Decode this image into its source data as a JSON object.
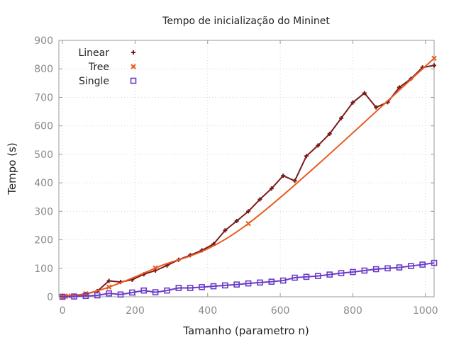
{
  "chart_data": {
    "type": "line",
    "title": "Tempo de inicialização do Mininet",
    "xlabel": "Tamanho (parametro n)",
    "ylabel": "Tempo (s)",
    "xlim": [
      -10,
      1024
    ],
    "ylim": [
      0,
      900
    ],
    "x_ticks": [
      0,
      200,
      400,
      600,
      800,
      1000
    ],
    "y_ticks": [
      0,
      100,
      200,
      300,
      400,
      500,
      600,
      700,
      800,
      900
    ],
    "x_tick_labels": [
      "0",
      "200",
      "400",
      "600",
      "800",
      "1000"
    ],
    "y_tick_labels": [
      "0",
      "100",
      "200",
      "300",
      "400",
      "500",
      "600",
      "700",
      "800",
      "900"
    ],
    "grid": true,
    "legend_position": "top-left",
    "series": [
      {
        "name": "Linear",
        "color": "#7a1a1a",
        "marker": "plus",
        "x": [
          0,
          32,
          64,
          96,
          128,
          160,
          192,
          224,
          256,
          288,
          320,
          352,
          384,
          416,
          448,
          480,
          512,
          544,
          576,
          608,
          640,
          672,
          704,
          736,
          768,
          800,
          832,
          864,
          896,
          928,
          960,
          992,
          1024
        ],
        "values": [
          1,
          4,
          10,
          20,
          56,
          52,
          60,
          79,
          92,
          110,
          130,
          146,
          163,
          185,
          233,
          266,
          300,
          342,
          380,
          425,
          407,
          494,
          531,
          572,
          627,
          682,
          715,
          665,
          683,
          735,
          765,
          805,
          812
        ]
      },
      {
        "name": "Tree",
        "color": "#e85a1e",
        "marker": "cross",
        "x": [
          2,
          8,
          16,
          64,
          128,
          256,
          512,
          1024
        ],
        "values": [
          0,
          1,
          3,
          11,
          34,
          101,
          257,
          837
        ]
      },
      {
        "name": "Single",
        "color": "#6a3bc8",
        "marker": "square",
        "x": [
          0,
          32,
          64,
          96,
          128,
          160,
          192,
          224,
          256,
          288,
          320,
          352,
          384,
          416,
          448,
          480,
          512,
          544,
          576,
          608,
          640,
          672,
          704,
          736,
          768,
          800,
          832,
          864,
          896,
          928,
          960,
          992,
          1024
        ],
        "values": [
          0,
          1,
          3,
          5,
          12,
          8,
          15,
          22,
          16,
          22,
          31,
          31,
          34,
          37,
          40,
          43,
          47,
          50,
          53,
          57,
          67,
          70,
          73,
          78,
          83,
          87,
          92,
          97,
          100,
          103,
          108,
          113,
          119
        ]
      }
    ]
  }
}
